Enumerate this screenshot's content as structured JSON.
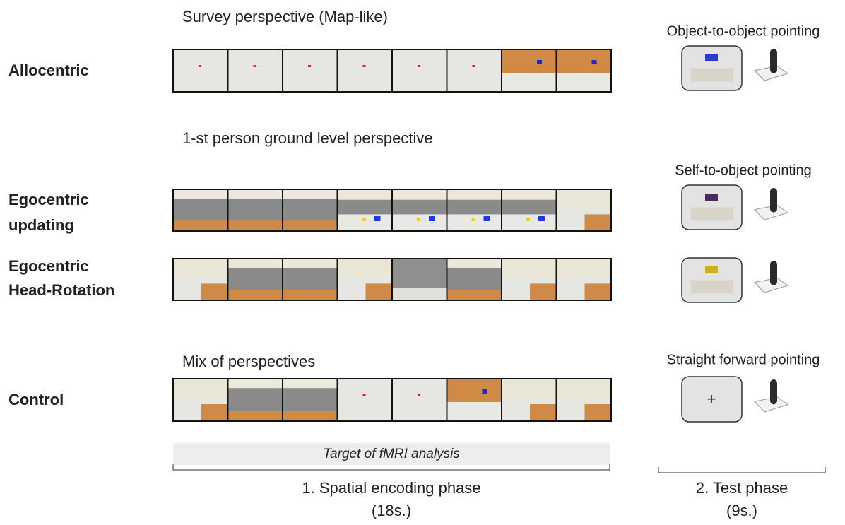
{
  "perspective_labels": [
    "Survey perspective (Map-like)",
    "1-st person ground level perspective",
    "Mix of perspectives"
  ],
  "conditions": [
    {
      "label_lines": [
        "Allocentric"
      ]
    },
    {
      "label_lines": [
        "Egocentric",
        "updating"
      ]
    },
    {
      "label_lines": [
        "Egocentric",
        "Head-Rotation"
      ]
    },
    {
      "label_lines": [
        "Control"
      ]
    }
  ],
  "test_labels": [
    "Object-to-object pointing",
    "Self-to-object pointing",
    "Straight forward pointing"
  ],
  "fixation": "+",
  "target_label": "Target of fMRI analysis",
  "phases": [
    {
      "title": "1. Spatial encoding phase",
      "duration": "(18s.)"
    },
    {
      "title": "2. Test phase",
      "duration": "(9s.)"
    }
  ]
}
